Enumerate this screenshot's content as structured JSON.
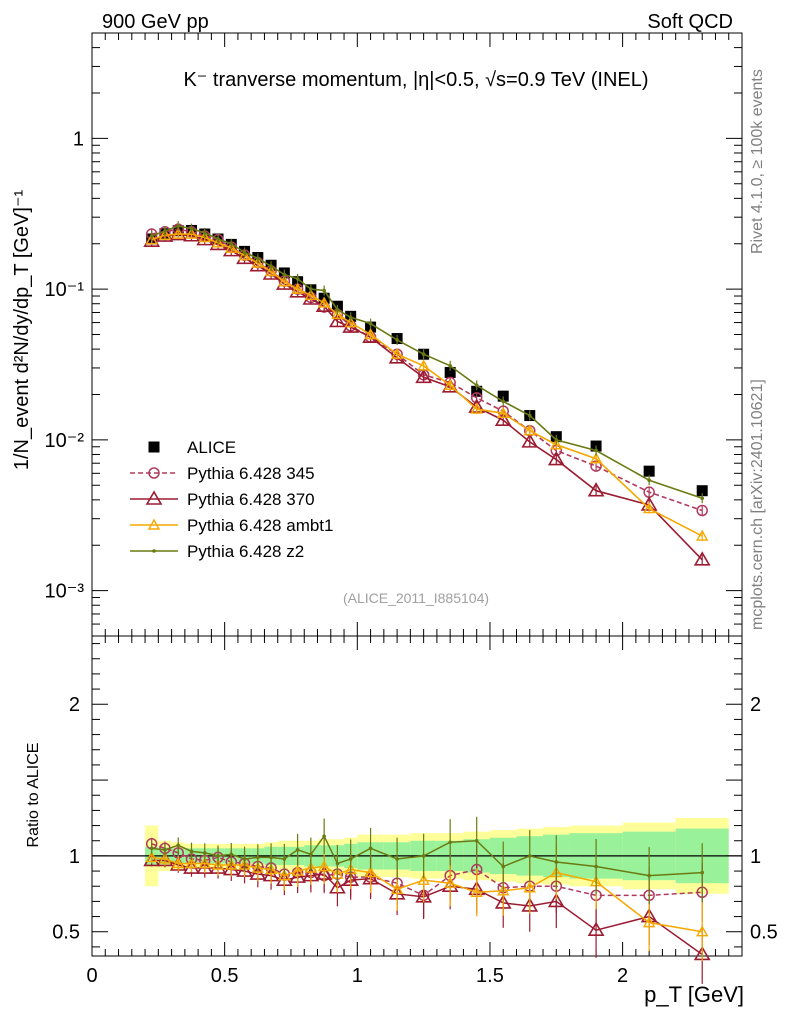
{
  "header": {
    "left": "900 GeV pp",
    "right": "Soft QCD"
  },
  "side_labels": {
    "rivet": "Rivet 4.1.0, ≥ 100k events",
    "mcplots": "mcplots.cern.ch [arXiv:2401.10621]"
  },
  "colors": {
    "alice": "#000000",
    "p345": "#b03a5e",
    "p370": "#9b1b30",
    "ambt1": "#f5a800",
    "z2": "#6b7a12",
    "band_inner": "#99f299",
    "band_outer": "#ffff99"
  },
  "chart_data": [
    {
      "type": "scatter",
      "panel": "main",
      "title": "K⁻ tranverse momentum, |η|<0.5, √s=0.9 TeV (INEL)",
      "watermark": "(ALICE_2011_I885104)",
      "ylabel": "1/N_event d²N/dy/dp_T [GeV]⁻¹",
      "xlabel": "",
      "yscale": "log",
      "xlim": [
        0,
        2.45
      ],
      "ylim": [
        0.0005,
        5
      ],
      "ytick_labels": [
        "10⁻³",
        "10⁻²",
        "10⁻¹",
        "1"
      ],
      "legend_position": "lower-left",
      "x": [
        0.225,
        0.275,
        0.325,
        0.375,
        0.425,
        0.475,
        0.525,
        0.575,
        0.625,
        0.675,
        0.725,
        0.775,
        0.825,
        0.875,
        0.925,
        0.975,
        1.05,
        1.15,
        1.25,
        1.35,
        1.45,
        1.55,
        1.65,
        1.75,
        1.9,
        2.1,
        2.3
      ],
      "series": [
        {
          "name": "ALICE",
          "marker": "square",
          "style": "none",
          "values": [
            0.215,
            0.233,
            0.244,
            0.245,
            0.232,
            0.215,
            0.198,
            0.178,
            0.162,
            0.144,
            0.128,
            0.112,
            0.099,
            0.087,
            0.077,
            0.066,
            0.056,
            0.047,
            0.037,
            0.028,
            0.021,
            0.0195,
            0.0145,
            0.0105,
            0.0091,
            0.0062,
            0.0046
          ]
        },
        {
          "name": "Pythia 6.428 345",
          "marker": "circle",
          "style": "dashed",
          "values": [
            0.232,
            0.24,
            0.25,
            0.24,
            0.225,
            0.213,
            0.19,
            0.168,
            0.15,
            0.132,
            0.113,
            0.1,
            0.088,
            0.076,
            0.068,
            0.057,
            0.048,
            0.037,
            0.027,
            0.024,
            0.019,
            0.0155,
            0.0115,
            0.0085,
            0.0067,
            0.0045,
            0.0034
          ]
        },
        {
          "name": "Pythia 6.428 370",
          "marker": "triangle",
          "style": "solid",
          "values": [
            0.208,
            0.225,
            0.23,
            0.226,
            0.213,
            0.198,
            0.18,
            0.16,
            0.143,
            0.126,
            0.108,
            0.096,
            0.086,
            0.077,
            0.061,
            0.056,
            0.048,
            0.035,
            0.026,
            0.0225,
            0.0165,
            0.0135,
            0.0097,
            0.0074,
            0.0046,
            0.0037,
            0.0016
          ]
        },
        {
          "name": "Pythia 6.428 ambt1",
          "marker": "triangle-small",
          "style": "solid",
          "values": [
            0.213,
            0.228,
            0.232,
            0.232,
            0.22,
            0.203,
            0.187,
            0.167,
            0.149,
            0.131,
            0.112,
            0.1,
            0.091,
            0.081,
            0.068,
            0.06,
            0.05,
            0.037,
            0.031,
            0.023,
            0.016,
            0.015,
            0.0115,
            0.0093,
            0.0075,
            0.0035,
            0.0023
          ]
        },
        {
          "name": "Pythia 6.428 z2",
          "marker": "dot",
          "style": "solid",
          "values": [
            0.225,
            0.243,
            0.262,
            0.252,
            0.236,
            0.215,
            0.2,
            0.175,
            0.16,
            0.142,
            0.125,
            0.117,
            0.1,
            0.098,
            0.073,
            0.065,
            0.059,
            0.046,
            0.037,
            0.031,
            0.023,
            0.018,
            0.0145,
            0.01,
            0.0085,
            0.0054,
            0.0041
          ]
        }
      ]
    },
    {
      "type": "line",
      "panel": "ratio",
      "ylabel": "Ratio to ALICE",
      "xlabel": "p_T [GeV]",
      "xlim": [
        0,
        2.45
      ],
      "ylim": [
        0.34,
        2.45
      ],
      "x_ticks": [
        0,
        0.5,
        1,
        1.5,
        2
      ],
      "x_tick_labels": [
        "0",
        "0.5",
        "1",
        "1.5",
        "2"
      ],
      "y_ticks": [
        0.5,
        1,
        2
      ],
      "y_tick_labels": [
        "0.5",
        "1",
        "2"
      ],
      "x": [
        0.225,
        0.275,
        0.325,
        0.375,
        0.425,
        0.475,
        0.525,
        0.575,
        0.625,
        0.675,
        0.725,
        0.775,
        0.825,
        0.875,
        0.925,
        0.975,
        1.05,
        1.15,
        1.25,
        1.35,
        1.45,
        1.55,
        1.65,
        1.75,
        1.9,
        2.1,
        2.3
      ],
      "bin_edges": [
        0.2,
        0.25,
        0.3,
        0.35,
        0.4,
        0.45,
        0.5,
        0.55,
        0.6,
        0.65,
        0.7,
        0.75,
        0.8,
        0.85,
        0.9,
        0.95,
        1.0,
        1.1,
        1.2,
        1.3,
        1.4,
        1.5,
        1.6,
        1.7,
        1.8,
        2.0,
        2.2,
        2.4
      ],
      "band_inner_halfwidth": [
        0.06,
        0.055,
        0.05,
        0.05,
        0.05,
        0.05,
        0.05,
        0.05,
        0.05,
        0.06,
        0.06,
        0.06,
        0.07,
        0.07,
        0.07,
        0.08,
        0.09,
        0.09,
        0.1,
        0.1,
        0.11,
        0.12,
        0.13,
        0.14,
        0.15,
        0.16,
        0.18
      ],
      "band_outer_halfwidth": [
        0.2,
        0.1,
        0.09,
        0.08,
        0.08,
        0.08,
        0.08,
        0.08,
        0.08,
        0.09,
        0.1,
        0.1,
        0.1,
        0.11,
        0.11,
        0.12,
        0.14,
        0.14,
        0.15,
        0.15,
        0.16,
        0.17,
        0.18,
        0.19,
        0.2,
        0.22,
        0.25
      ],
      "series": [
        {
          "name": "Pythia 6.428 345",
          "marker": "circle",
          "style": "dashed",
          "values": [
            1.08,
            1.05,
            1.02,
            0.98,
            0.97,
            0.99,
            0.96,
            0.95,
            0.93,
            0.92,
            0.88,
            0.89,
            0.89,
            0.87,
            0.88,
            0.86,
            0.86,
            0.82,
            0.74,
            0.87,
            0.91,
            0.79,
            0.8,
            0.8,
            0.74,
            0.74,
            0.76
          ]
        },
        {
          "name": "Pythia 6.428 370",
          "marker": "triangle",
          "style": "solid",
          "values": [
            0.97,
            0.97,
            0.94,
            0.92,
            0.92,
            0.92,
            0.91,
            0.9,
            0.88,
            0.87,
            0.84,
            0.86,
            0.87,
            0.88,
            0.79,
            0.84,
            0.85,
            0.75,
            0.73,
            0.8,
            0.78,
            0.69,
            0.67,
            0.7,
            0.51,
            0.6,
            0.35
          ]
        },
        {
          "name": "Pythia 6.428 ambt1",
          "marker": "triangle-small",
          "style": "solid",
          "values": [
            0.99,
            0.98,
            0.95,
            0.95,
            0.95,
            0.94,
            0.94,
            0.94,
            0.92,
            0.91,
            0.87,
            0.9,
            0.92,
            0.93,
            0.88,
            0.91,
            0.89,
            0.78,
            0.84,
            0.82,
            0.76,
            0.77,
            0.79,
            0.89,
            0.83,
            0.56,
            0.5
          ]
        },
        {
          "name": "Pythia 6.428 z2",
          "marker": "dot",
          "style": "solid",
          "values": [
            1.05,
            1.04,
            1.07,
            1.03,
            1.02,
            1.0,
            1.01,
            0.98,
            0.99,
            0.99,
            0.98,
            1.04,
            1.01,
            1.13,
            0.95,
            0.98,
            1.05,
            0.98,
            1.0,
            1.09,
            1.1,
            0.93,
            1.0,
            0.96,
            0.93,
            0.87,
            0.89
          ]
        }
      ]
    }
  ]
}
